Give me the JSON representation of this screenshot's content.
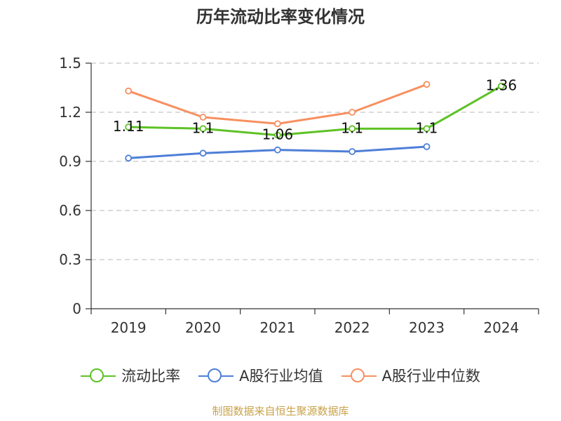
{
  "title": "历年流动比率变化情况",
  "source": "制图数据来自恒生聚源数据库",
  "colors": {
    "source_text": "#c8a24a",
    "grid": "#c8c8c8",
    "axis": "#333333"
  },
  "chart_data": {
    "type": "line",
    "title": "历年流动比率变化情况",
    "xlabel": "",
    "ylabel": "",
    "categories": [
      "2019",
      "2020",
      "2021",
      "2022",
      "2023",
      "2024"
    ],
    "ylim": [
      0,
      1.5
    ],
    "yticks": [
      "0",
      "0.3",
      "0.6",
      "0.9",
      "1.2",
      "1.5"
    ],
    "grid": true,
    "legend_position": "bottom",
    "series": [
      {
        "name": "流动比率",
        "color": "#5ec226",
        "values": [
          1.11,
          1.1,
          1.06,
          1.1,
          1.1,
          1.36
        ],
        "labels": [
          "1.11",
          "1.1",
          "1.06",
          "1.1",
          "1.1",
          "1.36"
        ]
      },
      {
        "name": "A股行业均值",
        "color": "#4e7fd8",
        "values": [
          0.92,
          0.95,
          0.97,
          0.96,
          0.99,
          null
        ]
      },
      {
        "name": "A股行业中位数",
        "color": "#f79060",
        "values": [
          1.33,
          1.17,
          1.13,
          1.2,
          1.37,
          null
        ]
      }
    ]
  }
}
